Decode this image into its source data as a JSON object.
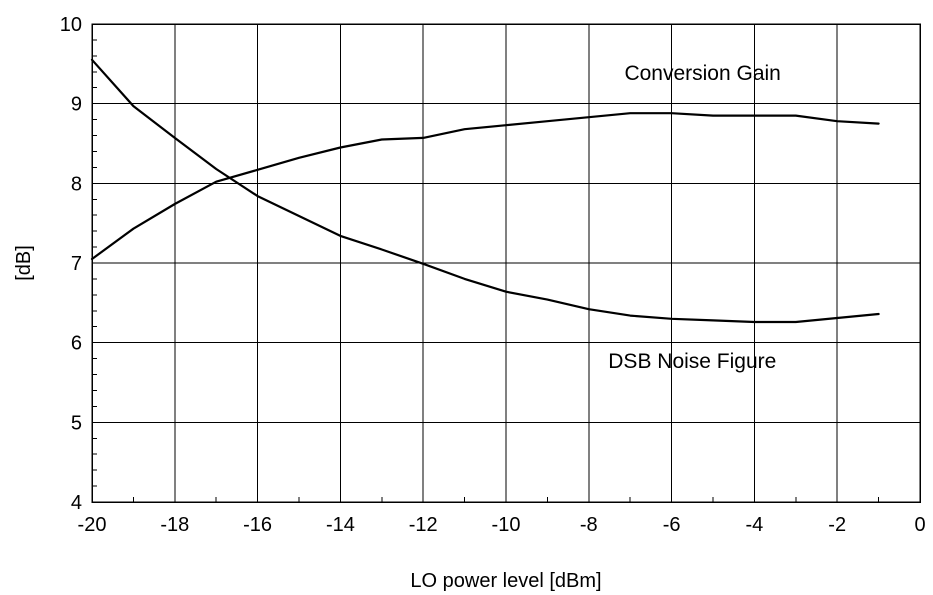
{
  "chart_data": {
    "type": "line",
    "title": "",
    "xlabel": "LO power level [dBm]",
    "ylabel": "[dB]",
    "xlim": [
      -20,
      0
    ],
    "ylim": [
      4,
      10
    ],
    "x_ticks": [
      -20,
      -18,
      -16,
      -14,
      -12,
      -10,
      -8,
      -6,
      -4,
      -2,
      0
    ],
    "y_ticks": [
      4,
      5,
      6,
      7,
      8,
      9,
      10
    ],
    "grid": true,
    "legend": "none",
    "series": [
      {
        "name": "Conversion Gain",
        "x": [
          -20,
          -19,
          -18,
          -17,
          -16,
          -15,
          -14,
          -13,
          -12,
          -11,
          -10,
          -9,
          -8,
          -7,
          -6,
          -5,
          -4,
          -3,
          -2,
          -1
        ],
        "y": [
          7.05,
          7.43,
          7.74,
          8.02,
          8.17,
          8.32,
          8.45,
          8.55,
          8.57,
          8.68,
          8.73,
          8.78,
          8.83,
          8.88,
          8.88,
          8.85,
          8.85,
          8.85,
          8.78,
          8.75
        ]
      },
      {
        "name": "DSB Noise Figure",
        "x": [
          -20,
          -19,
          -18,
          -17,
          -16,
          -15,
          -14,
          -13,
          -12,
          -11,
          -10,
          -9,
          -8,
          -7,
          -6,
          -5,
          -4,
          -3,
          -2,
          -1
        ],
        "y": [
          9.55,
          8.97,
          8.57,
          8.18,
          7.84,
          7.59,
          7.34,
          7.17,
          6.99,
          6.8,
          6.64,
          6.54,
          6.42,
          6.34,
          6.3,
          6.28,
          6.26,
          6.26,
          6.31,
          6.36
        ]
      }
    ],
    "annotations": [
      {
        "text": "Conversion Gain",
        "x": -5.25,
        "y": 9.3
      },
      {
        "text": "DSB Noise Figure",
        "x": -5.5,
        "y": 5.68
      }
    ]
  }
}
